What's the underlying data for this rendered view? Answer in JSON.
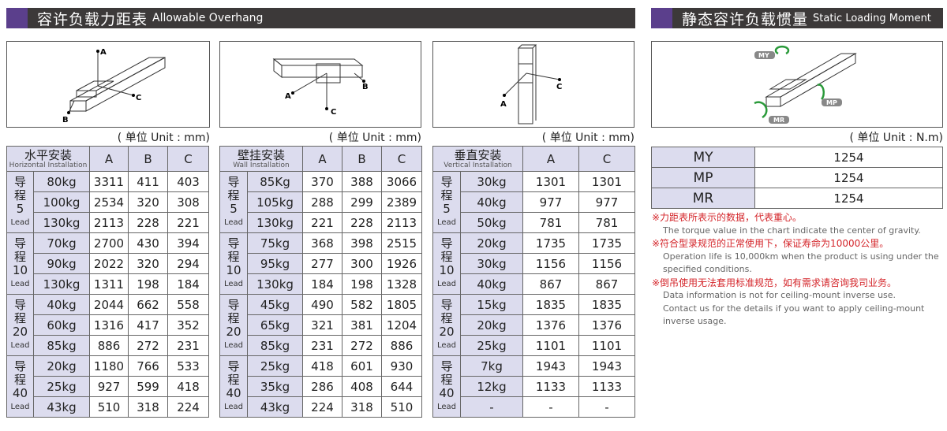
{
  "header_left": {
    "zh": "容许负载力距表",
    "en": "Allowable Overhang"
  },
  "header_right": {
    "zh": "静态容许负载惯量",
    "en": "Static Loading Moment"
  },
  "colors": {
    "header_bg": "#3c3939",
    "accent": "#5b3f8c",
    "cell_bg": "#dcdcee",
    "note_red": "#d4252a"
  },
  "diagram_labels": {
    "a": "A",
    "b": "B",
    "c": "C",
    "my": "MY",
    "mp": "MP",
    "mr": "MR"
  },
  "unit_mm": "( 单位 Unit : mm)",
  "unit_nm": "( 单位 Unit : N.m)",
  "tables": [
    {
      "zh": "水平安装",
      "en": "Horizontal Installation",
      "cols": [
        "A",
        "B",
        "C"
      ],
      "groups": [
        {
          "lead": "5",
          "rows": [
            [
              "80kg",
              "3311",
              "411",
              "403"
            ],
            [
              "100kg",
              "2534",
              "320",
              "308"
            ],
            [
              "130kg",
              "2113",
              "228",
              "221"
            ]
          ]
        },
        {
          "lead": "10",
          "rows": [
            [
              "70kg",
              "2700",
              "430",
              "394"
            ],
            [
              "90kg",
              "2022",
              "320",
              "294"
            ],
            [
              "130kg",
              "1311",
              "198",
              "184"
            ]
          ]
        },
        {
          "lead": "20",
          "rows": [
            [
              "40kg",
              "2044",
              "662",
              "558"
            ],
            [
              "60kg",
              "1316",
              "417",
              "352"
            ],
            [
              "85kg",
              "886",
              "272",
              "231"
            ]
          ]
        },
        {
          "lead": "40",
          "rows": [
            [
              "20kg",
              "1180",
              "766",
              "533"
            ],
            [
              "25kg",
              "927",
              "599",
              "418"
            ],
            [
              "43kg",
              "510",
              "318",
              "224"
            ]
          ]
        }
      ]
    },
    {
      "zh": "壁挂安装",
      "en": "Wall Installation",
      "cols": [
        "A",
        "B",
        "C"
      ],
      "groups": [
        {
          "lead": "5",
          "rows": [
            [
              "85Kg",
              "370",
              "388",
              "3066"
            ],
            [
              "105kg",
              "288",
              "299",
              "2389"
            ],
            [
              "130kg",
              "221",
              "228",
              "2113"
            ]
          ]
        },
        {
          "lead": "10",
          "rows": [
            [
              "75kg",
              "368",
              "398",
              "2515"
            ],
            [
              "95kg",
              "277",
              "300",
              "1926"
            ],
            [
              "130kg",
              "184",
              "198",
              "1328"
            ]
          ]
        },
        {
          "lead": "20",
          "rows": [
            [
              "45kg",
              "490",
              "582",
              "1805"
            ],
            [
              "65kg",
              "321",
              "381",
              "1204"
            ],
            [
              "85kg",
              "231",
              "272",
              "886"
            ]
          ]
        },
        {
          "lead": "40",
          "rows": [
            [
              "25kg",
              "418",
              "601",
              "930"
            ],
            [
              "35kg",
              "286",
              "408",
              "644"
            ],
            [
              "43kg",
              "224",
              "318",
              "510"
            ]
          ]
        }
      ]
    },
    {
      "zh": "垂直安装",
      "en": "Vertical Installation",
      "cols": [
        "A",
        "C"
      ],
      "groups": [
        {
          "lead": "5",
          "rows": [
            [
              "30kg",
              "1301",
              "1301"
            ],
            [
              "40kg",
              "977",
              "977"
            ],
            [
              "50kg",
              "781",
              "781"
            ]
          ]
        },
        {
          "lead": "10",
          "rows": [
            [
              "20kg",
              "1735",
              "1735"
            ],
            [
              "30kg",
              "1156",
              "1156"
            ],
            [
              "40kg",
              "867",
              "867"
            ]
          ]
        },
        {
          "lead": "20",
          "rows": [
            [
              "15kg",
              "1835",
              "1835"
            ],
            [
              "20kg",
              "1376",
              "1376"
            ],
            [
              "25kg",
              "1101",
              "1101"
            ]
          ]
        },
        {
          "lead": "40",
          "rows": [
            [
              "7kg",
              "1943",
              "1943"
            ],
            [
              "12kg",
              "1133",
              "1133"
            ],
            [
              "-",
              "-",
              "-"
            ]
          ]
        }
      ]
    }
  ],
  "lead_zh": "导程",
  "lead_en": "Lead",
  "moment": [
    {
      "label": "MY",
      "value": "1254"
    },
    {
      "label": "MP",
      "value": "1254"
    },
    {
      "label": "MR",
      "value": "1254"
    }
  ],
  "notes": [
    {
      "zh": "※力距表所表示的数据，代表重心。",
      "en": [
        "The torque value in the chart indicate the center of gravity."
      ]
    },
    {
      "zh": "※符合型录规范的正常使用下，保证寿命为10000公里。",
      "en": [
        "Operation life is 10,000km when the product is using under the",
        "specified conditions."
      ]
    },
    {
      "zh": "※倒吊使用无法套用标准规范，如有需求请咨询我司业务。",
      "en": [
        "Data information is not for ceiling-mount inverse use.",
        "Contact us for the details if you want to apply ceiling-mount",
        "inverse usage."
      ]
    }
  ]
}
